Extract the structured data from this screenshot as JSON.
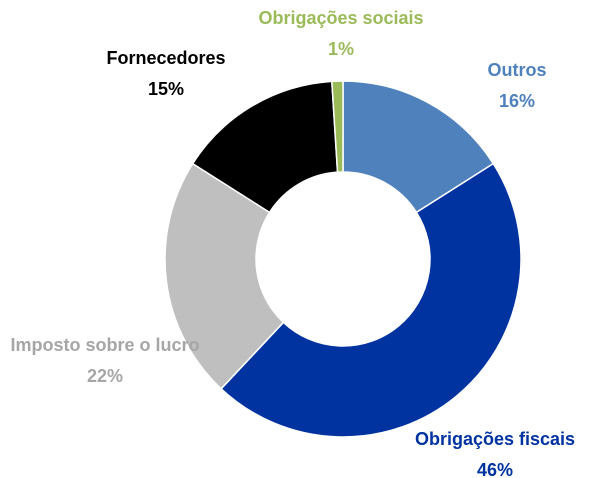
{
  "chart_data": {
    "type": "donut",
    "categories": [
      "Outros",
      "Obrigações fiscais",
      "Imposto sobre o lucro",
      "Fornecedores",
      "Obrigações sociais"
    ],
    "values": [
      16,
      46,
      22,
      15,
      1
    ],
    "value_labels": [
      "16%",
      "46%",
      "22%",
      "15%",
      "1%"
    ],
    "colors": [
      "#4f81bd",
      "#0033a0",
      "#bfbfbf",
      "#000000",
      "#9bbb59"
    ]
  }
}
